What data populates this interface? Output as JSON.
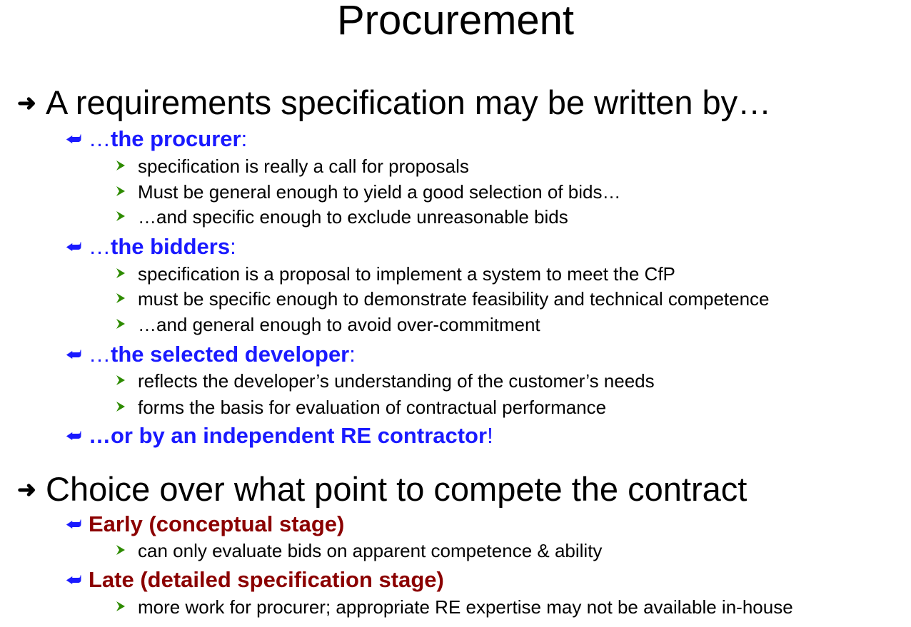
{
  "title": "Procurement",
  "section1": {
    "heading": "A requirements specification may be written by…",
    "groups": [
      {
        "lead": "…",
        "bold": "the procurer",
        "tail": ":",
        "items": [
          "specification is really a call for proposals",
          "Must be general enough to yield a good selection of bids…",
          "…and specific enough to exclude unreasonable bids"
        ]
      },
      {
        "lead": "…",
        "bold": "the bidders",
        "tail": ":",
        "items": [
          "specification is a proposal to implement a system to meet the CfP",
          "must be specific enough to demonstrate feasibility and technical competence",
          "…and general enough to avoid over-commitment"
        ]
      },
      {
        "lead": "…",
        "bold": "the selected developer",
        "tail": ":",
        "items": [
          "reflects the developer’s understanding of the customer’s needs",
          "forms the basis for evaluation of contractual performance"
        ]
      },
      {
        "bold": "…or by an independent RE contractor",
        "tail": "!"
      }
    ]
  },
  "section2": {
    "heading": "Choice over what point to compete the contract",
    "groups": [
      {
        "bold": "Early (conceptual stage)",
        "items": [
          "can only evaluate bids on apparent competence & ability"
        ]
      },
      {
        "bold": "Late (detailed specification stage)",
        "items": [
          "more work for procurer; appropriate RE expertise may not be available in-house"
        ]
      }
    ]
  },
  "icons": {
    "level1": "right-arrow-icon",
    "level2": "hook-arrow-icon",
    "level3": "green-triangle-bullet-icon"
  },
  "colors": {
    "text": "#000000",
    "accent_blue": "#1a1aff",
    "accent_dark_red": "#8b0000",
    "bullet_green": "#2e8b00"
  }
}
